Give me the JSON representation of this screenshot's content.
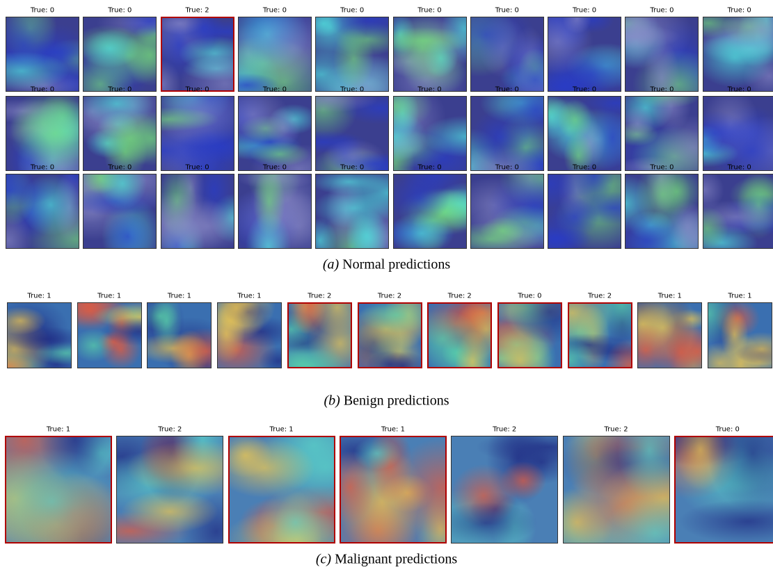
{
  "sections": [
    {
      "tag": "(a)",
      "caption": "Normal predictions",
      "rows": [
        [
          {
            "label": "True: 0",
            "red_border": false
          },
          {
            "label": "True: 0",
            "red_border": false
          },
          {
            "label": "True: 2",
            "red_border": true
          },
          {
            "label": "True: 0",
            "red_border": false
          },
          {
            "label": "True: 0",
            "red_border": false
          },
          {
            "label": "True: 0",
            "red_border": false
          },
          {
            "label": "True: 0",
            "red_border": false
          },
          {
            "label": "True: 0",
            "red_border": false
          },
          {
            "label": "True: 0",
            "red_border": false
          },
          {
            "label": "True: 0",
            "red_border": false
          }
        ],
        [
          {
            "label": "True: 0",
            "red_border": false
          },
          {
            "label": "True: 0",
            "red_border": false
          },
          {
            "label": "True: 0",
            "red_border": false
          },
          {
            "label": "True: 0",
            "red_border": false
          },
          {
            "label": "True: 0",
            "red_border": false
          },
          {
            "label": "True: 0",
            "red_border": false
          },
          {
            "label": "True: 0",
            "red_border": false
          },
          {
            "label": "True: 0",
            "red_border": false
          },
          {
            "label": "True: 0",
            "red_border": false
          },
          {
            "label": "True: 0",
            "red_border": false
          }
        ],
        [
          {
            "label": "True: 0",
            "red_border": false
          },
          {
            "label": "True: 0",
            "red_border": false
          },
          {
            "label": "True: 0",
            "red_border": false
          },
          {
            "label": "True: 0",
            "red_border": false
          },
          {
            "label": "True: 0",
            "red_border": false
          },
          {
            "label": "True: 0",
            "red_border": false
          },
          {
            "label": "True: 0",
            "red_border": false
          },
          {
            "label": "True: 0",
            "red_border": false
          },
          {
            "label": "True: 0",
            "red_border": false
          },
          {
            "label": "True: 0",
            "red_border": false
          }
        ]
      ]
    },
    {
      "tag": "(b)",
      "caption": "Benign predictions",
      "rows": [
        [
          {
            "label": "True: 1",
            "red_border": false
          },
          {
            "label": "True: 1",
            "red_border": false
          },
          {
            "label": "True: 1",
            "red_border": false
          },
          {
            "label": "True: 1",
            "red_border": false
          },
          {
            "label": "True: 2",
            "red_border": true
          },
          {
            "label": "True: 2",
            "red_border": true
          },
          {
            "label": "True: 2",
            "red_border": true
          },
          {
            "label": "True: 0",
            "red_border": true
          },
          {
            "label": "True: 2",
            "red_border": true
          },
          {
            "label": "True: 1",
            "red_border": false
          },
          {
            "label": "True: 1",
            "red_border": false
          }
        ]
      ]
    },
    {
      "tag": "(c)",
      "caption": "Malignant predictions",
      "rows": [
        [
          {
            "label": "True: 1",
            "red_border": true
          },
          {
            "label": "True: 2",
            "red_border": false
          },
          {
            "label": "True: 1",
            "red_border": true
          },
          {
            "label": "True: 1",
            "red_border": true
          },
          {
            "label": "True: 2",
            "red_border": false
          },
          {
            "label": "True: 2",
            "red_border": false
          },
          {
            "label": "True: 0",
            "red_border": true
          }
        ]
      ]
    }
  ]
}
